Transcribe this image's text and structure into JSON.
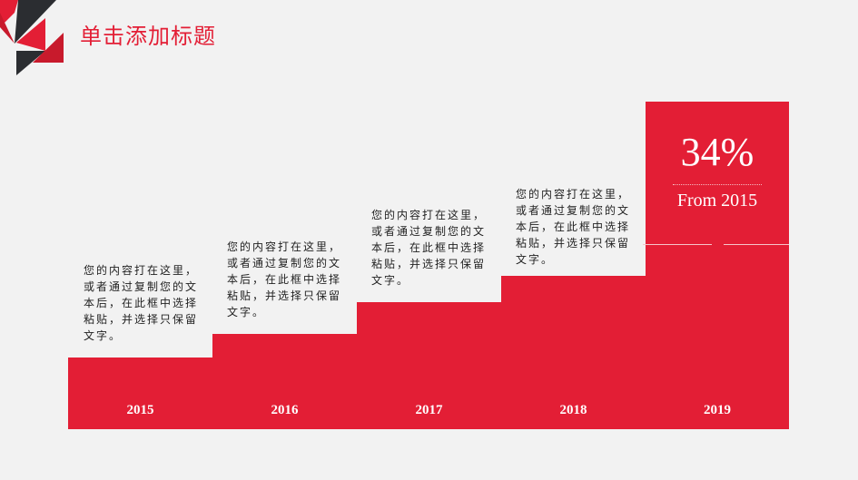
{
  "title": "单击添加标题",
  "colors": {
    "accent": "#e31e35",
    "dark": "#2b2d31",
    "background": "#f2f2f2"
  },
  "steps": [
    {
      "year": "2015",
      "lines": [
        "您的内容打在这里，",
        "或者通过复制您的文",
        "本后，在此框中选择",
        "粘贴，并选择只保留",
        "文字。"
      ]
    },
    {
      "year": "2016",
      "lines": [
        "您的内容打在这里，",
        "或者通过复制您的文",
        "本后，在此框中选择",
        "粘贴，并选择只保留",
        "文字。"
      ]
    },
    {
      "year": "2017",
      "lines": [
        "您的内容打在这里，",
        "或者通过复制您的文",
        "本后，在此框中选择",
        "粘贴，并选择只保留",
        "文字。"
      ]
    },
    {
      "year": "2018",
      "lines": [
        "您的内容打在这里，",
        "或者通过复制您的文",
        "本后，在此框中选择",
        "粘贴，并选择只保留",
        "文字。"
      ]
    },
    {
      "year": "2019"
    }
  ],
  "highlight": {
    "value": "34%",
    "caption": "From 2015"
  }
}
